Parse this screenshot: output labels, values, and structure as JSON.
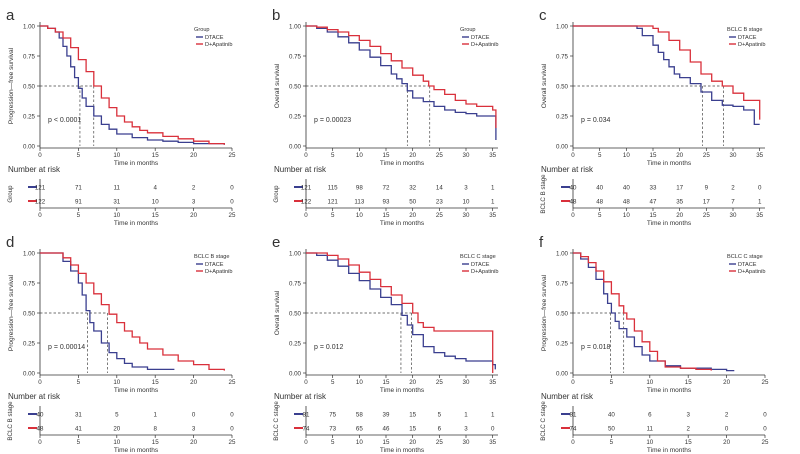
{
  "colors": {
    "dtace": "#3a3f8f",
    "dap": "#d9303b",
    "axis": "#333333",
    "ref": "#444444"
  },
  "chart_data": [
    {
      "panel": "a",
      "type": "line",
      "curve": "kaplan-meier",
      "ylabel": "Progression—free survival",
      "xlabel": "Time in months",
      "xlim": [
        0,
        25
      ],
      "ylim": [
        0,
        1
      ],
      "xticks": [
        0,
        5,
        10,
        15,
        20,
        25
      ],
      "yticks": [
        "0.00",
        "0.25",
        "0.50",
        "0.75",
        "1.00"
      ],
      "legend_title": "Group",
      "legend_position": "top-right",
      "pvalue": "p < 0.0001",
      "median": [
        5.2,
        7.0
      ],
      "risk_title": "Number at risk",
      "risk_ylabel": "Group",
      "risk_xticks": [
        0,
        5,
        10,
        15,
        20,
        25
      ],
      "series": [
        {
          "name": "DTACE",
          "color_key": "dtace",
          "x": [
            0,
            1,
            2,
            2.5,
            3,
            3.5,
            4,
            4.5,
            5,
            5.5,
            6,
            7,
            8,
            9,
            10,
            12,
            14,
            16,
            18,
            20,
            22,
            24
          ],
          "y": [
            1,
            0.98,
            0.95,
            0.9,
            0.83,
            0.75,
            0.66,
            0.57,
            0.48,
            0.4,
            0.33,
            0.25,
            0.18,
            0.14,
            0.1,
            0.07,
            0.05,
            0.04,
            0.03,
            0.02,
            0.02,
            0.01
          ],
          "risk": [
            121,
            71,
            11,
            4,
            2,
            0
          ]
        },
        {
          "name": "D+Apatinib",
          "color_key": "dap",
          "x": [
            0,
            1,
            2,
            3,
            4,
            5,
            6,
            7,
            8,
            9,
            10,
            11,
            12,
            13,
            14,
            16,
            18,
            20,
            22,
            24
          ],
          "y": [
            1,
            0.98,
            0.95,
            0.9,
            0.82,
            0.72,
            0.62,
            0.5,
            0.4,
            0.32,
            0.25,
            0.2,
            0.16,
            0.13,
            0.11,
            0.08,
            0.06,
            0.04,
            0.02,
            0.01
          ],
          "risk": [
            122,
            91,
            31,
            10,
            3,
            0
          ]
        }
      ]
    },
    {
      "panel": "b",
      "type": "line",
      "curve": "kaplan-meier",
      "ylabel": "Overall survival",
      "xlabel": "Time in months",
      "xlim": [
        0,
        36
      ],
      "ylim": [
        0,
        1
      ],
      "xticks": [
        0,
        5,
        10,
        15,
        20,
        25,
        30,
        35
      ],
      "yticks": [
        "0.00",
        "0.25",
        "0.50",
        "0.75",
        "1.00"
      ],
      "legend_title": "Group",
      "legend_position": "top-right",
      "pvalue": "p = 0.00023",
      "median": [
        19.0,
        23.2
      ],
      "risk_title": "Number at risk",
      "risk_ylabel": "Group",
      "risk_xticks": [
        0,
        5,
        10,
        15,
        20,
        25,
        30,
        35
      ],
      "series": [
        {
          "name": "DTACE",
          "color_key": "dtace",
          "x": [
            0,
            2,
            4,
            6,
            8,
            10,
            12,
            14,
            16,
            17,
            18,
            19,
            20,
            22,
            24,
            26,
            28,
            30,
            32,
            35,
            35.6
          ],
          "y": [
            1,
            0.98,
            0.95,
            0.91,
            0.86,
            0.8,
            0.74,
            0.67,
            0.6,
            0.56,
            0.52,
            0.46,
            0.4,
            0.37,
            0.33,
            0.3,
            0.28,
            0.27,
            0.25,
            0.25,
            0.05
          ],
          "risk": [
            121,
            115,
            98,
            72,
            32,
            14,
            3,
            1
          ]
        },
        {
          "name": "D+Apatinib",
          "color_key": "dap",
          "x": [
            0,
            2,
            4,
            6,
            8,
            10,
            12,
            14,
            16,
            18,
            20,
            22,
            23,
            24,
            26,
            28,
            30,
            32,
            35,
            35.6
          ],
          "y": [
            1,
            0.99,
            0.97,
            0.95,
            0.92,
            0.88,
            0.83,
            0.77,
            0.71,
            0.65,
            0.59,
            0.54,
            0.5,
            0.47,
            0.43,
            0.38,
            0.35,
            0.33,
            0.3,
            0.15
          ],
          "risk": [
            122,
            121,
            113,
            93,
            50,
            23,
            10,
            1
          ]
        }
      ]
    },
    {
      "panel": "c",
      "type": "line",
      "curve": "kaplan-meier",
      "ylabel": "Overall survival",
      "xlabel": "Time in months",
      "xlim": [
        0,
        36
      ],
      "ylim": [
        0,
        1
      ],
      "xticks": [
        0,
        5,
        10,
        15,
        20,
        25,
        30,
        35
      ],
      "yticks": [
        "0.00",
        "0.25",
        "0.50",
        "0.75",
        "1.00"
      ],
      "legend_title": "BCLC B stage",
      "legend_position": "top-right",
      "pvalue": "p = 0.034",
      "median": [
        24.3,
        28.2
      ],
      "risk_title": "Number at risk",
      "risk_ylabel": "BCLC B stage",
      "risk_xticks": [
        0,
        5,
        10,
        15,
        20,
        25,
        30,
        35
      ],
      "series": [
        {
          "name": "DTACE",
          "color_key": "dtace",
          "x": [
            0,
            12,
            13,
            15,
            16,
            17,
            18,
            19,
            20,
            22,
            24,
            26,
            28,
            30,
            32,
            34,
            35
          ],
          "y": [
            1,
            0.98,
            0.92,
            0.84,
            0.78,
            0.72,
            0.66,
            0.6,
            0.57,
            0.52,
            0.45,
            0.38,
            0.34,
            0.33,
            0.3,
            0.18,
            0.18
          ],
          "risk": [
            40,
            40,
            40,
            33,
            17,
            9,
            2,
            0
          ]
        },
        {
          "name": "D+Apatinib",
          "color_key": "dap",
          "x": [
            0,
            15,
            16,
            18,
            20,
            22,
            24,
            26,
            28,
            30,
            32,
            34,
            35
          ],
          "y": [
            1,
            0.98,
            0.95,
            0.88,
            0.8,
            0.7,
            0.6,
            0.54,
            0.5,
            0.44,
            0.38,
            0.38,
            0.22
          ],
          "risk": [
            48,
            48,
            48,
            47,
            35,
            17,
            7,
            1
          ]
        }
      ]
    },
    {
      "panel": "d",
      "type": "line",
      "curve": "kaplan-meier",
      "ylabel": "Progression—free survival",
      "xlabel": "Time in months",
      "xlim": [
        0,
        25
      ],
      "ylim": [
        0,
        1
      ],
      "xticks": [
        0,
        5,
        10,
        15,
        20,
        25
      ],
      "yticks": [
        "0.00",
        "0.25",
        "0.50",
        "0.75",
        "1.00"
      ],
      "legend_title": "BCLC B stage",
      "legend_position": "top-right",
      "pvalue": "p = 0.00014",
      "median": [
        6.2,
        8.8
      ],
      "risk_title": "Number at risk",
      "risk_ylabel": "BCLC B stage",
      "risk_xticks": [
        0,
        5,
        10,
        15,
        20,
        25
      ],
      "series": [
        {
          "name": "DTACE",
          "color_key": "dtace",
          "x": [
            0,
            2,
            3,
            4,
            5,
            5.5,
            6,
            6.5,
            7,
            8,
            9,
            10,
            11,
            12,
            14,
            16,
            17.5
          ],
          "y": [
            1,
            1,
            0.93,
            0.85,
            0.75,
            0.65,
            0.52,
            0.42,
            0.35,
            0.25,
            0.17,
            0.12,
            0.08,
            0.05,
            0.03,
            0.03,
            0.03
          ],
          "risk": [
            40,
            31,
            5,
            1,
            0,
            0
          ]
        },
        {
          "name": "D+Apatinib",
          "color_key": "dap",
          "x": [
            0,
            2,
            3,
            4,
            5,
            6,
            7,
            8,
            9,
            10,
            11,
            12,
            13,
            14,
            16,
            18,
            20,
            22,
            24
          ],
          "y": [
            1,
            1,
            0.96,
            0.9,
            0.83,
            0.75,
            0.66,
            0.57,
            0.49,
            0.42,
            0.35,
            0.3,
            0.25,
            0.2,
            0.15,
            0.1,
            0.07,
            0.03,
            0.02
          ],
          "risk": [
            48,
            41,
            20,
            8,
            3,
            0
          ]
        }
      ]
    },
    {
      "panel": "e",
      "type": "line",
      "curve": "kaplan-meier",
      "ylabel": "Overall survival",
      "xlabel": "Time in months",
      "xlim": [
        0,
        36
      ],
      "ylim": [
        0,
        1
      ],
      "xticks": [
        0,
        5,
        10,
        15,
        20,
        25,
        30,
        35
      ],
      "yticks": [
        "0.00",
        "0.25",
        "0.50",
        "0.75",
        "1.00"
      ],
      "legend_title": "BCLC C stage",
      "legend_position": "top-right",
      "pvalue": "p = 0.012",
      "median": [
        17.8,
        19.8
      ],
      "risk_title": "Number at risk",
      "risk_ylabel": "BCLC C stage",
      "risk_xticks": [
        0,
        5,
        10,
        15,
        20,
        25,
        30,
        35
      ],
      "series": [
        {
          "name": "DTACE",
          "color_key": "dtace",
          "x": [
            0,
            2,
            4,
            6,
            8,
            10,
            12,
            14,
            16,
            18,
            19,
            20,
            22,
            24,
            26,
            28,
            30,
            35,
            35.5
          ],
          "y": [
            1,
            0.98,
            0.94,
            0.89,
            0.83,
            0.77,
            0.7,
            0.63,
            0.57,
            0.48,
            0.4,
            0.32,
            0.22,
            0.17,
            0.14,
            0.12,
            0.1,
            0.07,
            0.03
          ],
          "risk": [
            81,
            75,
            58,
            39,
            15,
            5,
            1,
            1
          ]
        },
        {
          "name": "D+Apatinib",
          "color_key": "dap",
          "x": [
            0,
            2,
            4,
            6,
            8,
            10,
            12,
            14,
            16,
            18,
            20,
            21,
            22,
            24,
            26,
            30,
            34.8,
            35
          ],
          "y": [
            1,
            1,
            0.98,
            0.95,
            0.9,
            0.84,
            0.78,
            0.72,
            0.65,
            0.58,
            0.5,
            0.42,
            0.38,
            0.35,
            0.35,
            0.35,
            0.35,
            0.0
          ],
          "risk": [
            74,
            73,
            65,
            46,
            15,
            6,
            3,
            0
          ]
        }
      ]
    },
    {
      "panel": "f",
      "type": "line",
      "curve": "kaplan-meier",
      "ylabel": "Progression—free survival",
      "xlabel": "Time in months",
      "xlim": [
        0,
        25
      ],
      "ylim": [
        0,
        1
      ],
      "xticks": [
        0,
        5,
        10,
        15,
        20,
        25
      ],
      "yticks": [
        "0.00",
        "0.25",
        "0.50",
        "0.75",
        "1.00"
      ],
      "legend_title": "BCLC C stage",
      "legend_position": "top-right",
      "pvalue": "p = 0.018",
      "median": [
        4.9,
        6.6
      ],
      "risk_title": "Number at risk",
      "risk_ylabel": "BCLC C stage",
      "risk_xticks": [
        0,
        5,
        10,
        15,
        20,
        25
      ],
      "series": [
        {
          "name": "DTACE",
          "color_key": "dtace",
          "x": [
            0,
            1,
            2,
            3,
            4,
            4.5,
            5,
            5.5,
            6,
            7,
            8,
            9,
            10,
            12,
            14,
            16,
            18,
            20,
            21
          ],
          "y": [
            1,
            0.95,
            0.88,
            0.78,
            0.66,
            0.58,
            0.5,
            0.43,
            0.37,
            0.3,
            0.22,
            0.15,
            0.1,
            0.06,
            0.04,
            0.04,
            0.03,
            0.02,
            0.02
          ],
          "risk": [
            81,
            40,
            6,
            3,
            2,
            0
          ]
        },
        {
          "name": "D+Apatinib",
          "color_key": "dap",
          "x": [
            0,
            1,
            2,
            3,
            4,
            5,
            6,
            6.6,
            7,
            8,
            9,
            10,
            11,
            12,
            14,
            16,
            18
          ],
          "y": [
            1,
            0.97,
            0.92,
            0.85,
            0.76,
            0.66,
            0.56,
            0.5,
            0.45,
            0.35,
            0.26,
            0.18,
            0.1,
            0.05,
            0.04,
            0.03,
            0.02
          ],
          "risk": [
            74,
            50,
            11,
            2,
            0,
            0
          ]
        }
      ]
    }
  ]
}
